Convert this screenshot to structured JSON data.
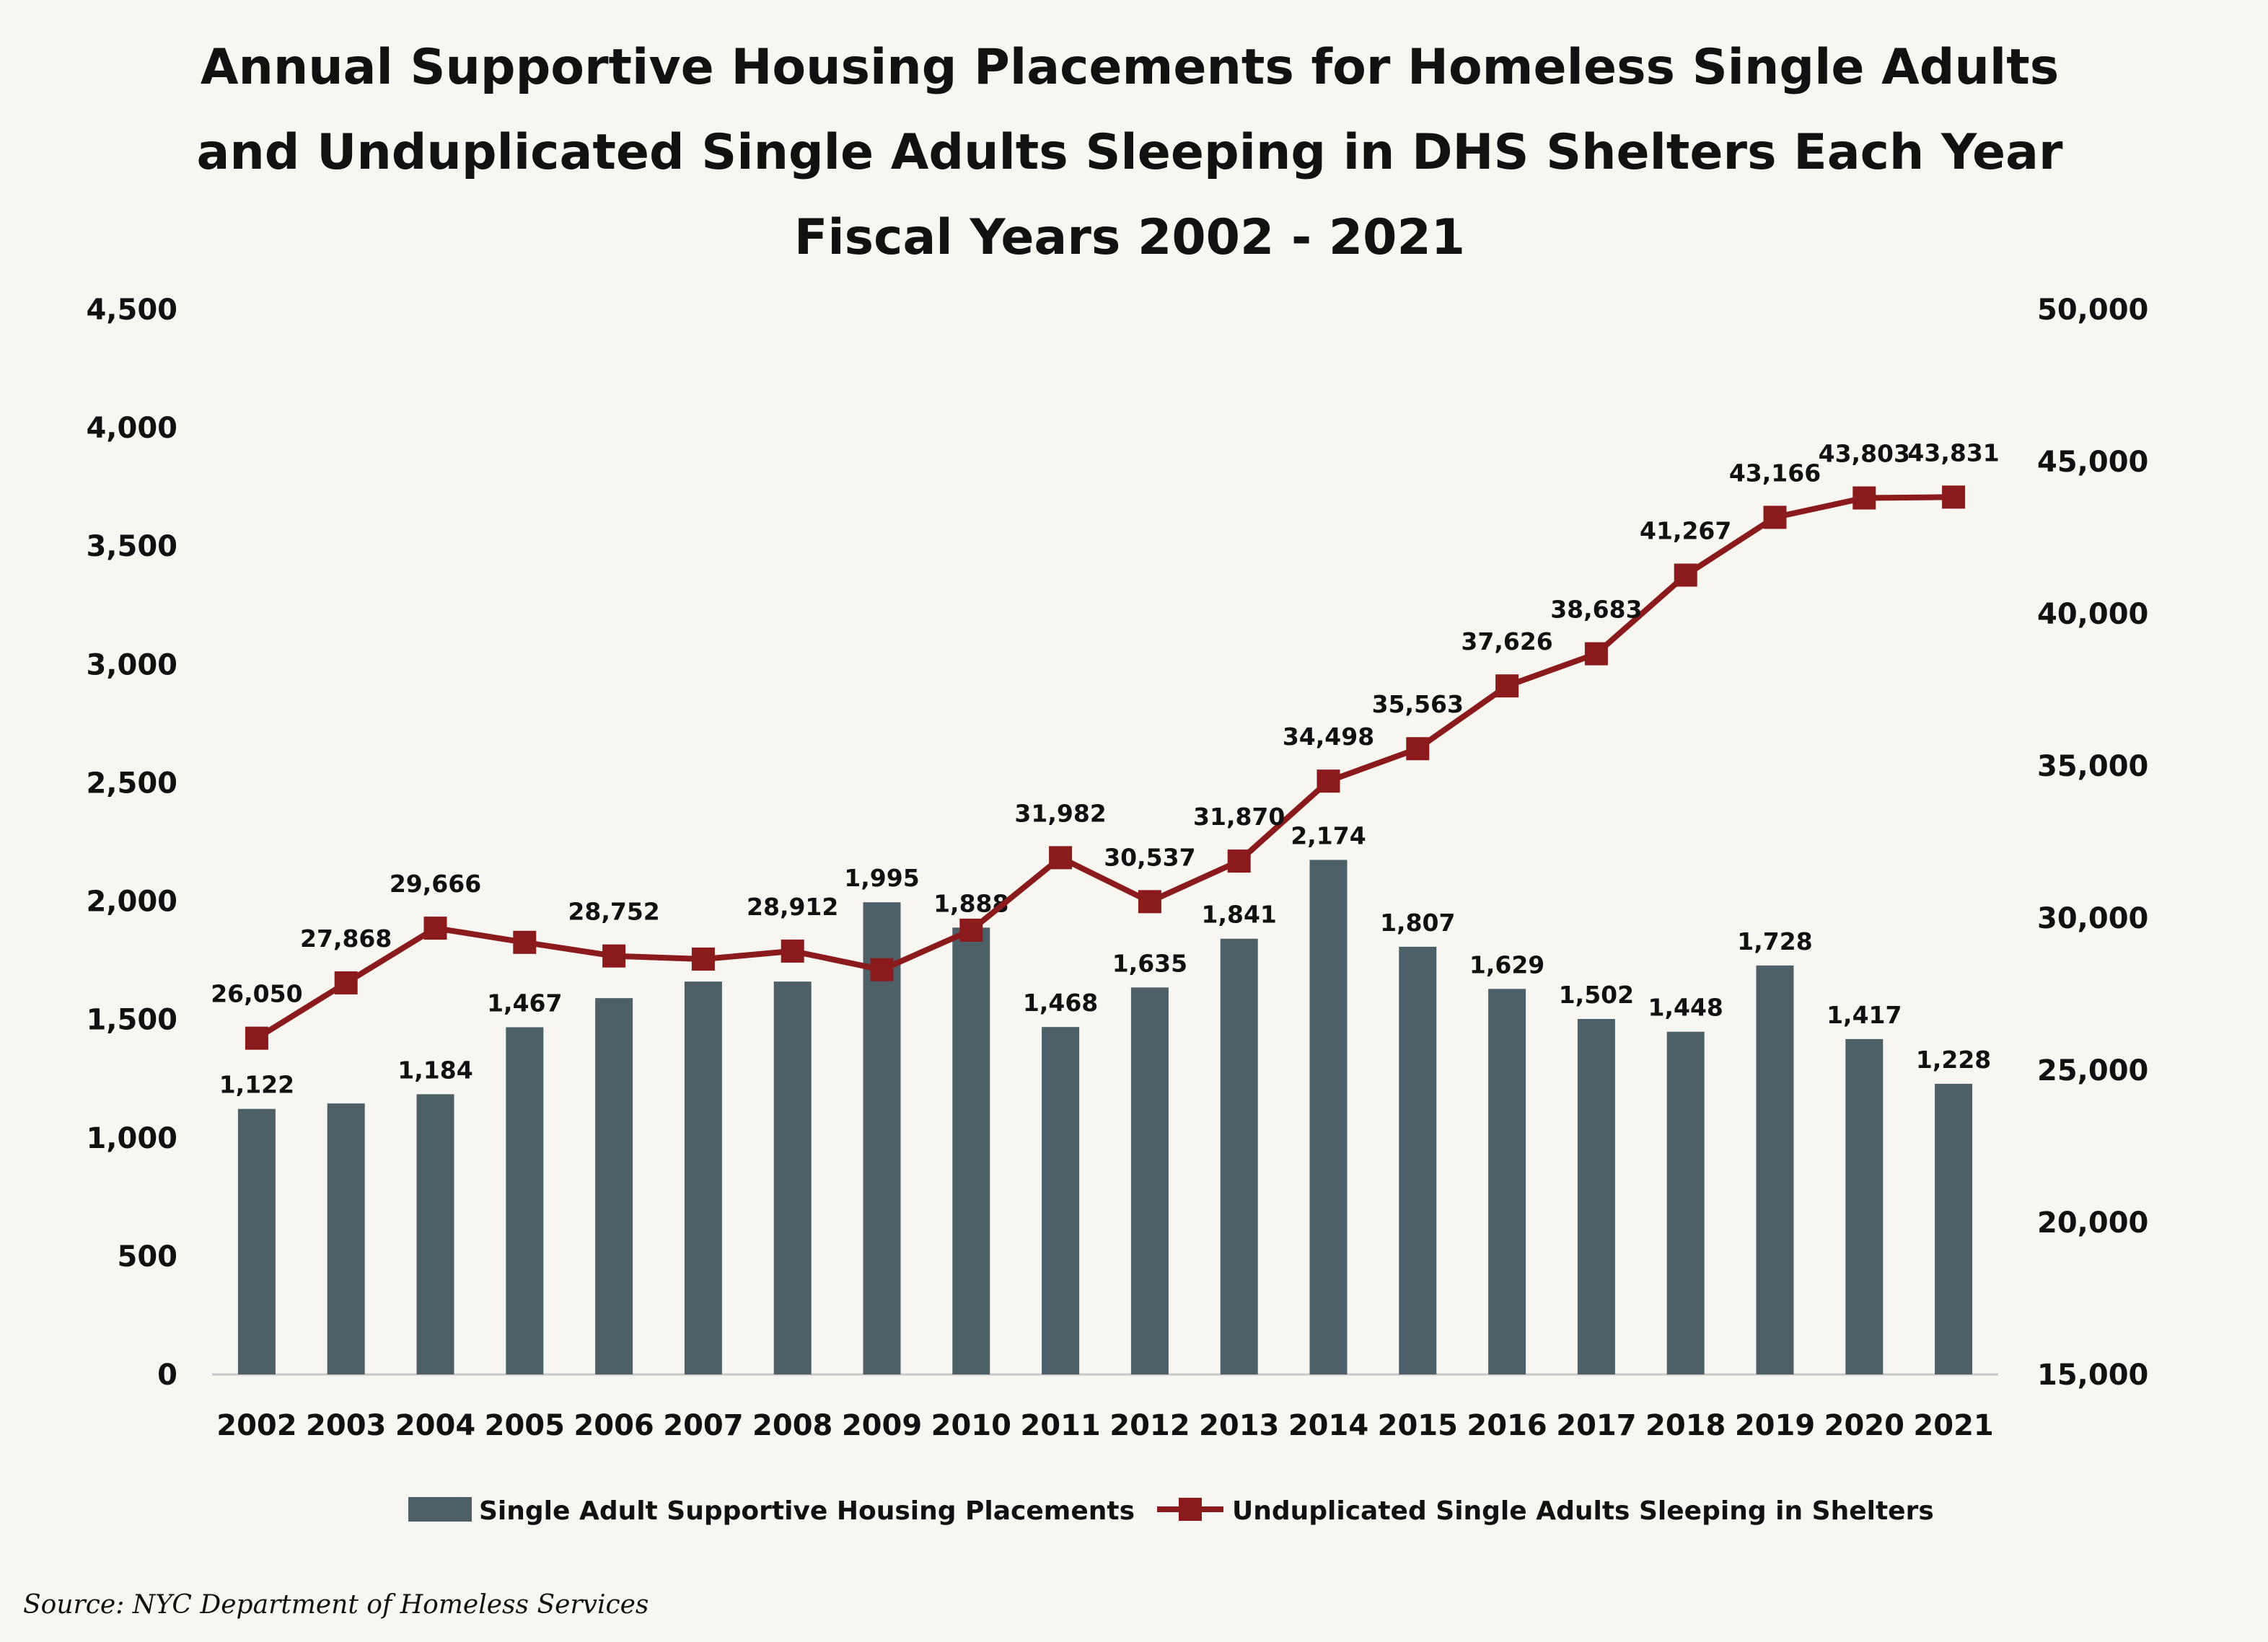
{
  "chart_data": {
    "type": "bar",
    "title_lines": [
      "Annual Supportive Housing Placements for Homeless Single Adults",
      "and Unduplicated Single Adults Sleeping in DHS Shelters Each Year",
      "Fiscal Years 2002 - 2021"
    ],
    "categories": [
      "2002",
      "2003",
      "2004",
      "2005",
      "2006",
      "2007",
      "2008",
      "2009",
      "2010",
      "2011",
      "2012",
      "2013",
      "2014",
      "2015",
      "2016",
      "2017",
      "2018",
      "2019",
      "2020",
      "2021"
    ],
    "series": [
      {
        "name": "Single Adult Supportive Housing Placements",
        "type": "bar",
        "axis": "left",
        "color": "#4d6068",
        "values": [
          1122,
          1145,
          1184,
          1467,
          1590,
          1660,
          1660,
          1995,
          1888,
          1468,
          1635,
          1841,
          2174,
          1807,
          1629,
          1502,
          1448,
          1728,
          1417,
          1228
        ],
        "labels": [
          "1,122",
          "",
          "1,184",
          "1,467",
          "",
          "",
          "",
          "1,995",
          "1,888",
          "1,468",
          "1,635",
          "1,841",
          "2,174",
          "1,807",
          "1,629",
          "1,502",
          "1,448",
          "1,728",
          "1,417",
          "1,228"
        ]
      },
      {
        "name": "Unduplicated Single Adults Sleeping in Shelters",
        "type": "line",
        "axis": "right",
        "color": "#8b1a1c",
        "values": [
          26050,
          27868,
          29666,
          29200,
          28752,
          28650,
          28912,
          28300,
          29600,
          31982,
          30537,
          31870,
          34498,
          35563,
          37626,
          38683,
          41267,
          43166,
          43803,
          43831
        ],
        "labels": [
          "26,050",
          "27,868",
          "29,666",
          "",
          "28,752",
          "",
          "28,912",
          "",
          "",
          "31,982",
          "30,537",
          "31,870",
          "34,498",
          "35,563",
          "37,626",
          "38,683",
          "41,267",
          "43,166",
          "43,803",
          "43,831"
        ]
      }
    ],
    "y_left": {
      "min": 0,
      "max": 4500,
      "ticks": [
        "0",
        "500",
        "1,000",
        "1,500",
        "2,000",
        "2,500",
        "3,000",
        "3,500",
        "4,000",
        "4,500"
      ]
    },
    "y_right": {
      "min": 15000,
      "max": 50000,
      "ticks": [
        "15,000",
        "20,000",
        "25,000",
        "30,000",
        "35,000",
        "40,000",
        "45,000",
        "50,000"
      ]
    },
    "grid": false,
    "legend_position": "bottom"
  },
  "source": "Source: NYC Department of Homeless Services"
}
